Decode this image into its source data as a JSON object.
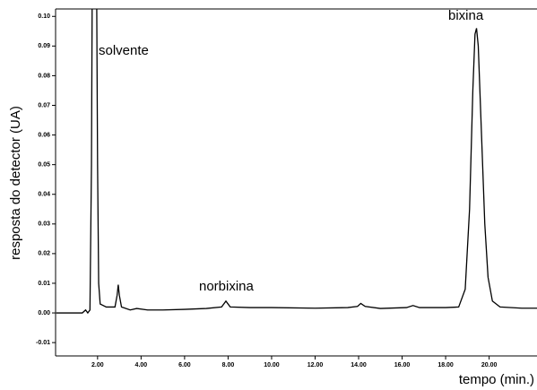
{
  "chart_data": {
    "type": "line",
    "xlabel": "tempo (min.)",
    "ylabel": "resposta do detector (UA)",
    "annotations": [
      "solvente",
      "norbixina",
      "bixina"
    ],
    "color": "#000000",
    "x": [
      0.1,
      1.3,
      1.45,
      1.55,
      1.65,
      1.72,
      1.76,
      1.95,
      2.0,
      2.05,
      2.12,
      2.4,
      2.8,
      2.9,
      2.95,
      3.0,
      3.1,
      3.5,
      3.8,
      4.3,
      5,
      6,
      7,
      7.7,
      7.9,
      8.1,
      9,
      10,
      12,
      13.5,
      13.95,
      14.1,
      14.3,
      15,
      16.2,
      16.5,
      16.8,
      18,
      18.6,
      18.9,
      19.1,
      19.25,
      19.35,
      19.42,
      19.5,
      19.65,
      19.8,
      19.95,
      20.15,
      20.5,
      21.5,
      22.2
    ],
    "values": [
      0,
      0,
      0.001,
      0,
      0.001,
      0.05,
      0.12,
      0.12,
      0.05,
      0.01,
      0.003,
      0.002,
      0.002,
      0.006,
      0.0095,
      0.006,
      0.002,
      0.001,
      0.0015,
      0.001,
      0.001,
      0.0012,
      0.0015,
      0.002,
      0.004,
      0.002,
      0.0018,
      0.0018,
      0.0016,
      0.0018,
      0.0022,
      0.0032,
      0.0022,
      0.0015,
      0.0018,
      0.0025,
      0.0018,
      0.0018,
      0.002,
      0.008,
      0.035,
      0.075,
      0.094,
      0.096,
      0.09,
      0.06,
      0.03,
      0.012,
      0.004,
      0.002,
      0.0016,
      0.0016
    ],
    "xlim": [
      0.07,
      22.2
    ],
    "ylim": [
      -0.0145,
      0.1025
    ],
    "xticks": [
      {
        "value": 2,
        "label": "2.00"
      },
      {
        "value": 4,
        "label": "4.00"
      },
      {
        "value": 6,
        "label": "6.00"
      },
      {
        "value": 8,
        "label": "8.00"
      },
      {
        "value": 10,
        "label": "10.00"
      },
      {
        "value": 12,
        "label": "12.00"
      },
      {
        "value": 14,
        "label": "14.00"
      },
      {
        "value": 16,
        "label": "16.00"
      },
      {
        "value": 18,
        "label": "18.00"
      },
      {
        "value": 20,
        "label": "20.00"
      }
    ],
    "yticks": [
      -0.01,
      {
        "value": 0,
        "label": "0.00"
      },
      0.01,
      0.02,
      0.03,
      0.04,
      0.05,
      0.06,
      0.07,
      0.08,
      0.09,
      {
        "value": 0.1,
        "label": "0.10"
      }
    ]
  }
}
